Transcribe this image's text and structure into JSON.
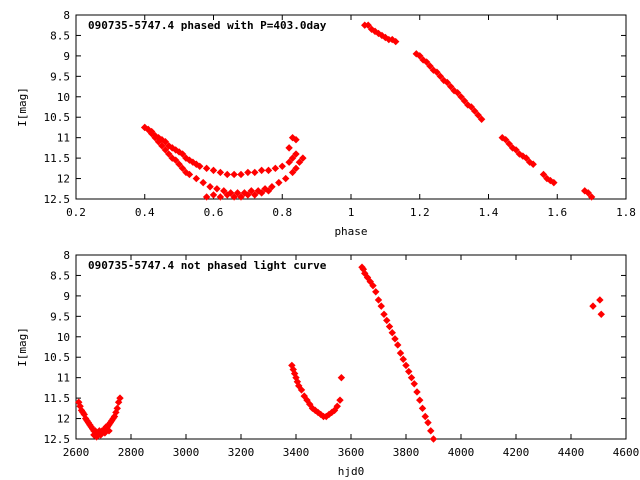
{
  "chart_data": [
    {
      "type": "scatter",
      "title": "090735-5747.4 phased with P=403.0day",
      "xlabel": "phase",
      "ylabel": "I[mag]",
      "xlim": [
        0.2,
        1.8
      ],
      "ylim": [
        12.5,
        8
      ],
      "y_inverted": true,
      "x_ticks": [
        "0.2",
        "0.4",
        "0.6",
        "0.8",
        "1",
        "1.2",
        "1.4",
        "1.6",
        "1.8"
      ],
      "y_ticks": [
        "8",
        "8.5",
        "9",
        "9.5",
        "10",
        "10.5",
        "11",
        "11.5",
        "12",
        "12.5"
      ],
      "grid": false,
      "marker_color": "#ff0000",
      "series": [
        {
          "x": [
            0.4,
            0.41,
            0.42,
            0.43,
            0.44,
            0.45,
            0.46,
            0.47,
            0.48,
            0.49,
            0.5,
            0.51,
            0.52,
            0.53,
            0.55,
            0.57,
            0.59,
            0.61,
            0.63,
            0.65,
            0.67,
            0.69,
            0.71,
            0.73,
            0.75,
            0.77,
            0.79,
            0.81,
            0.83,
            0.84,
            0.85,
            0.86,
            0.4,
            0.41,
            0.42,
            0.43,
            0.44,
            0.45,
            0.46,
            0.47,
            0.48,
            0.49,
            0.5,
            0.51,
            0.52,
            0.53,
            0.54,
            0.55,
            0.56,
            0.58,
            0.6,
            0.62,
            0.64,
            0.66,
            0.68,
            0.7,
            0.72,
            0.74,
            0.76,
            0.78,
            0.8,
            0.82,
            0.83,
            0.84,
            0.58,
            0.6,
            0.62,
            0.64,
            0.66,
            0.68,
            0.7,
            0.72,
            0.74,
            0.76,
            0.82,
            0.83,
            0.84,
            1.04,
            1.05,
            1.06,
            1.07,
            1.08,
            1.09,
            1.1,
            1.11,
            1.12,
            1.13,
            1.19,
            1.2,
            1.21,
            1.22,
            1.23,
            1.24,
            1.25,
            1.26,
            1.27,
            1.28,
            1.29,
            1.3,
            1.31,
            1.32,
            1.33,
            1.34,
            1.35,
            1.36,
            1.37,
            1.38,
            1.44,
            1.45,
            1.46,
            1.47,
            1.48,
            1.49,
            1.5,
            1.51,
            1.52,
            1.53,
            1.56,
            1.57,
            1.58,
            1.59,
            1.68,
            1.69,
            1.7
          ],
          "y": [
            10.75,
            10.8,
            10.9,
            11.0,
            11.1,
            11.2,
            11.3,
            11.4,
            11.5,
            11.55,
            11.65,
            11.75,
            11.85,
            11.9,
            12.0,
            12.1,
            12.2,
            12.25,
            12.3,
            12.35,
            12.35,
            12.35,
            12.3,
            12.3,
            12.25,
            12.2,
            12.1,
            12.0,
            11.85,
            11.75,
            11.6,
            11.5,
            10.75,
            10.8,
            10.85,
            10.95,
            11.0,
            11.05,
            11.1,
            11.2,
            11.25,
            11.3,
            11.35,
            11.4,
            11.5,
            11.55,
            11.6,
            11.65,
            11.7,
            11.75,
            11.8,
            11.85,
            11.9,
            11.9,
            11.9,
            11.85,
            11.85,
            11.8,
            11.8,
            11.75,
            11.7,
            11.6,
            11.5,
            11.4,
            12.45,
            12.4,
            12.45,
            12.4,
            12.45,
            12.45,
            12.4,
            12.4,
            12.35,
            12.3,
            11.25,
            11.0,
            11.05,
            8.25,
            8.25,
            8.35,
            8.4,
            8.45,
            8.5,
            8.55,
            8.6,
            8.6,
            8.65,
            8.95,
            9.0,
            9.1,
            9.15,
            9.25,
            9.35,
            9.4,
            9.5,
            9.6,
            9.65,
            9.75,
            9.85,
            9.9,
            10.0,
            10.1,
            10.2,
            10.25,
            10.35,
            10.45,
            10.55,
            11.0,
            11.05,
            11.15,
            11.25,
            11.3,
            11.4,
            11.45,
            11.5,
            11.6,
            11.65,
            11.9,
            12.0,
            12.05,
            12.1,
            12.3,
            12.35,
            12.45
          ]
        }
      ]
    },
    {
      "type": "scatter",
      "title": "090735-5747.4 not phased light curve",
      "xlabel": "hjd0",
      "ylabel": "I[mag]",
      "xlim": [
        2600,
        4600
      ],
      "ylim": [
        12.5,
        8
      ],
      "y_inverted": true,
      "x_ticks": [
        "2600",
        "2800",
        "3000",
        "3200",
        "3400",
        "3600",
        "3800",
        "4000",
        "4200",
        "4400",
        "4600"
      ],
      "y_ticks": [
        "8",
        "8.5",
        "9",
        "9.5",
        "10",
        "10.5",
        "11",
        "11.5",
        "12",
        "12.5"
      ],
      "grid": false,
      "marker_color": "#ff0000",
      "series": [
        {
          "x": [
            2610,
            2615,
            2620,
            2625,
            2630,
            2635,
            2640,
            2645,
            2650,
            2655,
            2660,
            2665,
            2670,
            2675,
            2680,
            2685,
            2690,
            2695,
            2700,
            2705,
            2710,
            2715,
            2720,
            2725,
            2730,
            2735,
            2740,
            2745,
            2750,
            2755,
            2760,
            2665,
            2675,
            2690,
            2705,
            2720,
            3385,
            3390,
            3395,
            3400,
            3405,
            3410,
            3420,
            3430,
            3440,
            3450,
            3460,
            3470,
            3480,
            3490,
            3500,
            3510,
            3520,
            3530,
            3540,
            3550,
            3560,
            3565,
            3640,
            3645,
            3650,
            3660,
            3670,
            3680,
            3690,
            3700,
            3710,
            3720,
            3730,
            3740,
            3750,
            3760,
            3770,
            3780,
            3790,
            3800,
            3810,
            3820,
            3830,
            3840,
            3850,
            3860,
            3870,
            3880,
            3890,
            3900,
            4480,
            4505,
            4510
          ],
          "y": [
            11.6,
            11.7,
            11.8,
            11.85,
            11.9,
            12.0,
            12.05,
            12.1,
            12.15,
            12.2,
            12.25,
            12.3,
            12.3,
            12.35,
            12.35,
            12.3,
            12.35,
            12.3,
            12.3,
            12.25,
            12.2,
            12.2,
            12.15,
            12.1,
            12.05,
            12.0,
            11.95,
            11.85,
            11.75,
            11.6,
            11.5,
            12.4,
            12.45,
            12.4,
            12.35,
            12.3,
            10.7,
            10.8,
            10.9,
            11.0,
            11.1,
            11.2,
            11.3,
            11.45,
            11.55,
            11.65,
            11.75,
            11.8,
            11.85,
            11.9,
            11.95,
            11.95,
            11.9,
            11.85,
            11.8,
            11.7,
            11.55,
            11.0,
            8.3,
            8.35,
            8.45,
            8.55,
            8.65,
            8.75,
            8.9,
            9.1,
            9.25,
            9.45,
            9.6,
            9.75,
            9.9,
            10.05,
            10.2,
            10.4,
            10.55,
            10.7,
            10.85,
            11.0,
            11.15,
            11.35,
            11.55,
            11.75,
            11.95,
            12.1,
            12.3,
            12.5,
            9.25,
            9.1,
            9.45
          ]
        }
      ]
    }
  ]
}
